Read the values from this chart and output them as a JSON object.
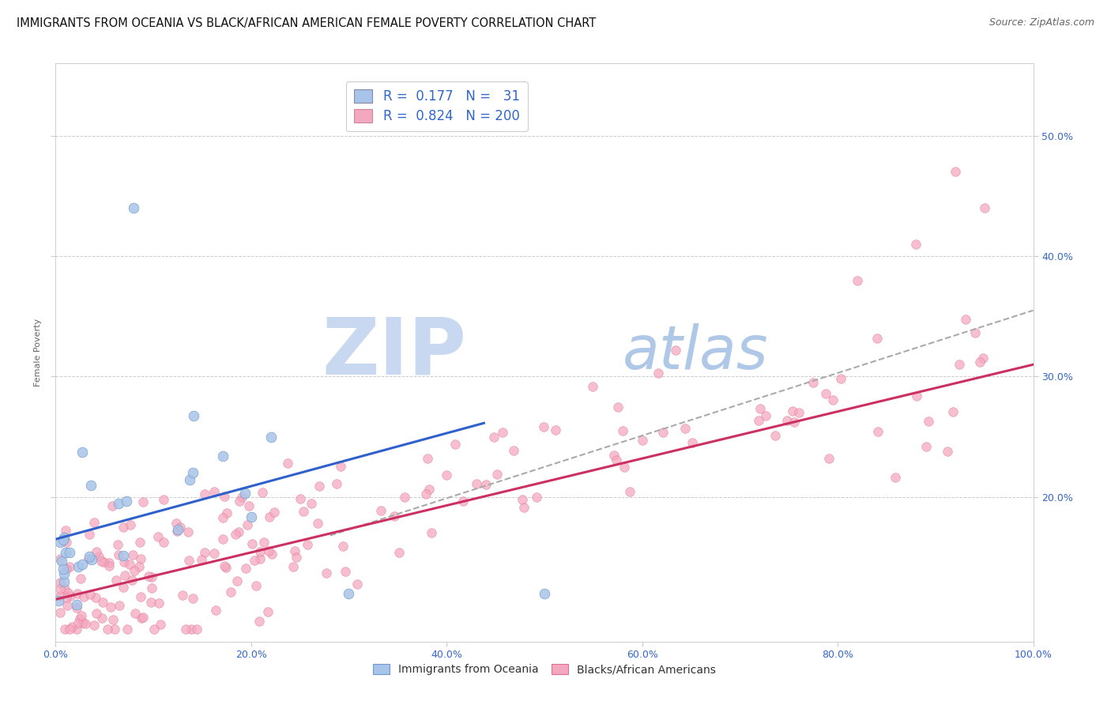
{
  "title": "IMMIGRANTS FROM OCEANIA VS BLACK/AFRICAN AMERICAN FEMALE POVERTY CORRELATION CHART",
  "source": "Source: ZipAtlas.com",
  "ylabel": "Female Poverty",
  "series1_label": "Immigrants from Oceania",
  "series2_label": "Blacks/African Americans",
  "series1_R": 0.177,
  "series1_N": 31,
  "series2_R": 0.824,
  "series2_N": 200,
  "series1_color": "#A8C4E8",
  "series2_color": "#F4A8C0",
  "series1_edge": "#7098CC",
  "series2_edge": "#E07090",
  "trend1_color": "#3060CC",
  "trend2_color": "#CC3060",
  "trend_dashed_color": "#AAAAAA",
  "watermark_zip": "ZIP",
  "watermark_atlas": "atlas",
  "watermark_color_zip": "#C8D8F0",
  "watermark_color_atlas": "#B0C8E8",
  "title_fontsize": 10.5,
  "source_fontsize": 9,
  "legend_fontsize": 12,
  "axis_label_fontsize": 8,
  "tick_fontsize": 9,
  "background_color": "#FFFFFF",
  "grid_color": "#CCCCCC",
  "xlim": [
    0.0,
    1.0
  ],
  "ylim": [
    0.08,
    0.56
  ],
  "yticks": [
    0.2,
    0.3,
    0.4,
    0.5
  ],
  "ytick_labels": [
    "20.0%",
    "30.0%",
    "40.0%",
    "50.0%"
  ],
  "xticks": [
    0.0,
    0.2,
    0.4,
    0.6,
    0.8,
    1.0
  ],
  "xtick_labels": [
    "0.0%",
    "20.0%",
    "40.0%",
    "60.0%",
    "80.0%",
    "100.0%"
  ]
}
